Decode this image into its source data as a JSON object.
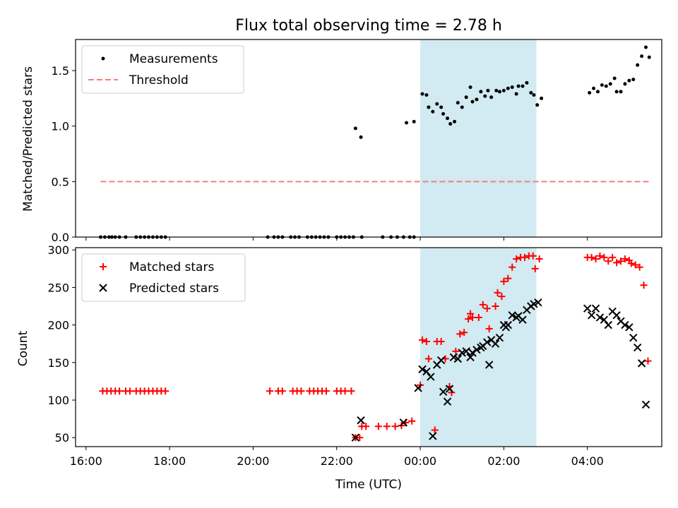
{
  "chart_data": {
    "title": "Flux total observing time = 2.78 h",
    "shaded_window_hours": [
      24.0,
      26.78
    ],
    "shade_color": "#add8e6",
    "x_axis": {
      "label": "Time (UTC)",
      "range_hours": [
        15.75,
        29.78
      ],
      "tick_hours": [
        16,
        18,
        20,
        22,
        24,
        26,
        28
      ],
      "tick_labels": [
        "16:00",
        "18:00",
        "20:00",
        "22:00",
        "00:00",
        "02:00",
        "04:00"
      ],
      "note": "hours since 00:00 of first night; values >= 24 are next day"
    },
    "panels": [
      {
        "type": "scatter",
        "ylabel": "Matched/Predicted stars",
        "ylim": [
          0,
          1.78
        ],
        "yticks": [
          0.0,
          0.5,
          1.0,
          1.5
        ],
        "ytick_labels": [
          "0.0",
          "0.5",
          "1.0",
          "1.5"
        ],
        "legend_position": "upper-left",
        "series": [
          {
            "name": "Measurements",
            "marker": "dot",
            "color": "#000000",
            "points": [
              [
                16.35,
                0
              ],
              [
                16.45,
                0
              ],
              [
                16.55,
                0
              ],
              [
                16.62,
                0
              ],
              [
                16.7,
                0
              ],
              [
                16.8,
                0
              ],
              [
                16.95,
                0
              ],
              [
                17.2,
                0
              ],
              [
                17.3,
                0
              ],
              [
                17.4,
                0
              ],
              [
                17.5,
                0
              ],
              [
                17.6,
                0
              ],
              [
                17.7,
                0
              ],
              [
                17.8,
                0
              ],
              [
                17.9,
                0
              ],
              [
                20.35,
                0
              ],
              [
                20.5,
                0
              ],
              [
                20.6,
                0
              ],
              [
                20.7,
                0
              ],
              [
                20.9,
                0
              ],
              [
                21.0,
                0
              ],
              [
                21.1,
                0
              ],
              [
                21.3,
                0
              ],
              [
                21.4,
                0
              ],
              [
                21.5,
                0
              ],
              [
                21.6,
                0
              ],
              [
                21.7,
                0
              ],
              [
                21.8,
                0
              ],
              [
                22.0,
                0
              ],
              [
                22.1,
                0
              ],
              [
                22.2,
                0
              ],
              [
                22.3,
                0
              ],
              [
                22.4,
                0
              ],
              [
                22.6,
                0
              ],
              [
                22.45,
                0.98
              ],
              [
                22.58,
                0.9
              ],
              [
                23.1,
                0
              ],
              [
                23.3,
                0
              ],
              [
                23.45,
                0
              ],
              [
                23.6,
                0
              ],
              [
                23.75,
                0
              ],
              [
                23.85,
                0
              ],
              [
                23.67,
                1.03
              ],
              [
                23.85,
                1.04
              ],
              [
                24.05,
                1.29
              ],
              [
                24.15,
                1.28
              ],
              [
                24.2,
                1.17
              ],
              [
                24.3,
                1.13
              ],
              [
                24.4,
                1.2
              ],
              [
                24.5,
                1.17
              ],
              [
                24.55,
                1.11
              ],
              [
                24.65,
                1.07
              ],
              [
                24.72,
                1.02
              ],
              [
                24.82,
                1.04
              ],
              [
                24.9,
                1.21
              ],
              [
                25.0,
                1.17
              ],
              [
                25.1,
                1.26
              ],
              [
                25.2,
                1.35
              ],
              [
                25.25,
                1.22
              ],
              [
                25.35,
                1.24
              ],
              [
                25.45,
                1.31
              ],
              [
                25.55,
                1.27
              ],
              [
                25.62,
                1.32
              ],
              [
                25.7,
                1.26
              ],
              [
                25.82,
                1.32
              ],
              [
                25.9,
                1.31
              ],
              [
                26.0,
                1.32
              ],
              [
                26.1,
                1.34
              ],
              [
                26.2,
                1.35
              ],
              [
                26.3,
                1.29
              ],
              [
                26.35,
                1.36
              ],
              [
                26.45,
                1.36
              ],
              [
                26.55,
                1.39
              ],
              [
                26.65,
                1.3
              ],
              [
                26.72,
                1.28
              ],
              [
                26.8,
                1.19
              ],
              [
                26.9,
                1.25
              ],
              [
                28.05,
                1.3
              ],
              [
                28.15,
                1.34
              ],
              [
                28.25,
                1.31
              ],
              [
                28.35,
                1.37
              ],
              [
                28.45,
                1.36
              ],
              [
                28.55,
                1.38
              ],
              [
                28.65,
                1.43
              ],
              [
                28.7,
                1.31
              ],
              [
                28.8,
                1.31
              ],
              [
                28.9,
                1.38
              ],
              [
                29.0,
                1.41
              ],
              [
                29.1,
                1.42
              ],
              [
                29.2,
                1.55
              ],
              [
                29.3,
                1.63
              ],
              [
                29.4,
                1.71
              ],
              [
                29.48,
                1.62
              ]
            ]
          },
          {
            "name": "Threshold",
            "marker": "dashed-line",
            "color": "#f08080",
            "x_range": [
              16.35,
              29.48
            ],
            "y": 0.5
          }
        ]
      },
      {
        "type": "scatter",
        "ylabel": "Count",
        "ylim": [
          38,
          303
        ],
        "yticks": [
          50,
          100,
          150,
          200,
          250,
          300
        ],
        "ytick_labels": [
          "50",
          "100",
          "150",
          "200",
          "250",
          "300"
        ],
        "legend_position": "upper-left",
        "series": [
          {
            "name": "Matched stars",
            "marker": "plus",
            "color": "#ff0000",
            "points": [
              [
                16.4,
                112
              ],
              [
                16.5,
                112
              ],
              [
                16.6,
                112
              ],
              [
                16.7,
                112
              ],
              [
                16.8,
                112
              ],
              [
                16.95,
                112
              ],
              [
                17.05,
                112
              ],
              [
                17.2,
                112
              ],
              [
                17.3,
                112
              ],
              [
                17.4,
                112
              ],
              [
                17.5,
                112
              ],
              [
                17.6,
                112
              ],
              [
                17.7,
                112
              ],
              [
                17.8,
                112
              ],
              [
                17.9,
                112
              ],
              [
                20.4,
                112
              ],
              [
                20.6,
                112
              ],
              [
                20.7,
                112
              ],
              [
                20.95,
                112
              ],
              [
                21.05,
                112
              ],
              [
                21.15,
                112
              ],
              [
                21.35,
                112
              ],
              [
                21.45,
                112
              ],
              [
                21.55,
                112
              ],
              [
                21.65,
                112
              ],
              [
                21.75,
                112
              ],
              [
                22.0,
                112
              ],
              [
                22.1,
                112
              ],
              [
                22.2,
                112
              ],
              [
                22.35,
                112
              ],
              [
                22.45,
                50
              ],
              [
                22.55,
                50
              ],
              [
                22.6,
                65
              ],
              [
                22.7,
                65
              ],
              [
                23.0,
                65
              ],
              [
                23.2,
                65
              ],
              [
                23.4,
                65
              ],
              [
                23.55,
                66
              ],
              [
                23.65,
                70
              ],
              [
                23.8,
                72
              ],
              [
                24.0,
                120
              ],
              [
                24.05,
                180
              ],
              [
                24.15,
                178
              ],
              [
                24.2,
                155
              ],
              [
                24.35,
                60
              ],
              [
                24.4,
                178
              ],
              [
                24.5,
                178
              ],
              [
                24.6,
                155
              ],
              [
                24.7,
                118
              ],
              [
                24.75,
                110
              ],
              [
                24.85,
                165
              ],
              [
                24.95,
                188
              ],
              [
                25.05,
                190
              ],
              [
                25.15,
                208
              ],
              [
                25.2,
                215
              ],
              [
                25.25,
                210
              ],
              [
                25.4,
                210
              ],
              [
                25.5,
                227
              ],
              [
                25.6,
                222
              ],
              [
                25.65,
                195
              ],
              [
                25.8,
                225
              ],
              [
                25.85,
                243
              ],
              [
                25.95,
                238
              ],
              [
                26.0,
                258
              ],
              [
                26.1,
                262
              ],
              [
                26.2,
                277
              ],
              [
                26.3,
                288
              ],
              [
                26.4,
                290
              ],
              [
                26.5,
                290
              ],
              [
                26.6,
                292
              ],
              [
                26.7,
                292
              ],
              [
                26.75,
                275
              ],
              [
                26.85,
                288
              ],
              [
                28.0,
                290
              ],
              [
                28.1,
                290
              ],
              [
                28.2,
                288
              ],
              [
                28.3,
                292
              ],
              [
                28.4,
                290
              ],
              [
                28.5,
                285
              ],
              [
                28.6,
                290
              ],
              [
                28.7,
                283
              ],
              [
                28.8,
                285
              ],
              [
                28.9,
                288
              ],
              [
                29.0,
                286
              ],
              [
                29.05,
                282
              ],
              [
                29.15,
                280
              ],
              [
                29.25,
                277
              ],
              [
                29.35,
                253
              ],
              [
                29.45,
                152
              ]
            ]
          },
          {
            "name": "Predicted stars",
            "marker": "x",
            "color": "#000000",
            "points": [
              [
                22.45,
                50
              ],
              [
                22.58,
                73
              ],
              [
                23.6,
                70
              ],
              [
                23.95,
                116
              ],
              [
                24.05,
                141
              ],
              [
                24.15,
                138
              ],
              [
                24.25,
                131
              ],
              [
                24.3,
                52
              ],
              [
                24.4,
                147
              ],
              [
                24.5,
                153
              ],
              [
                24.55,
                111
              ],
              [
                24.65,
                98
              ],
              [
                24.7,
                115
              ],
              [
                24.8,
                157
              ],
              [
                24.9,
                155
              ],
              [
                25.0,
                163
              ],
              [
                25.1,
                165
              ],
              [
                25.2,
                157
              ],
              [
                25.25,
                163
              ],
              [
                25.35,
                167
              ],
              [
                25.45,
                170
              ],
              [
                25.5,
                172
              ],
              [
                25.6,
                177
              ],
              [
                25.65,
                147
              ],
              [
                25.7,
                180
              ],
              [
                25.8,
                175
              ],
              [
                25.9,
                183
              ],
              [
                26.0,
                200
              ],
              [
                26.05,
                197
              ],
              [
                26.1,
                200
              ],
              [
                26.2,
                213
              ],
              [
                26.3,
                210
              ],
              [
                26.35,
                212
              ],
              [
                26.45,
                207
              ],
              [
                26.55,
                220
              ],
              [
                26.65,
                225
              ],
              [
                26.72,
                228
              ],
              [
                26.82,
                230
              ],
              [
                28.0,
                222
              ],
              [
                28.1,
                213
              ],
              [
                28.2,
                222
              ],
              [
                28.3,
                210
              ],
              [
                28.4,
                207
              ],
              [
                28.5,
                200
              ],
              [
                28.6,
                218
              ],
              [
                28.7,
                213
              ],
              [
                28.8,
                205
              ],
              [
                28.9,
                200
              ],
              [
                29.0,
                197
              ],
              [
                29.1,
                183
              ],
              [
                29.2,
                170
              ],
              [
                29.3,
                149
              ],
              [
                29.4,
                94
              ]
            ]
          }
        ]
      }
    ]
  }
}
